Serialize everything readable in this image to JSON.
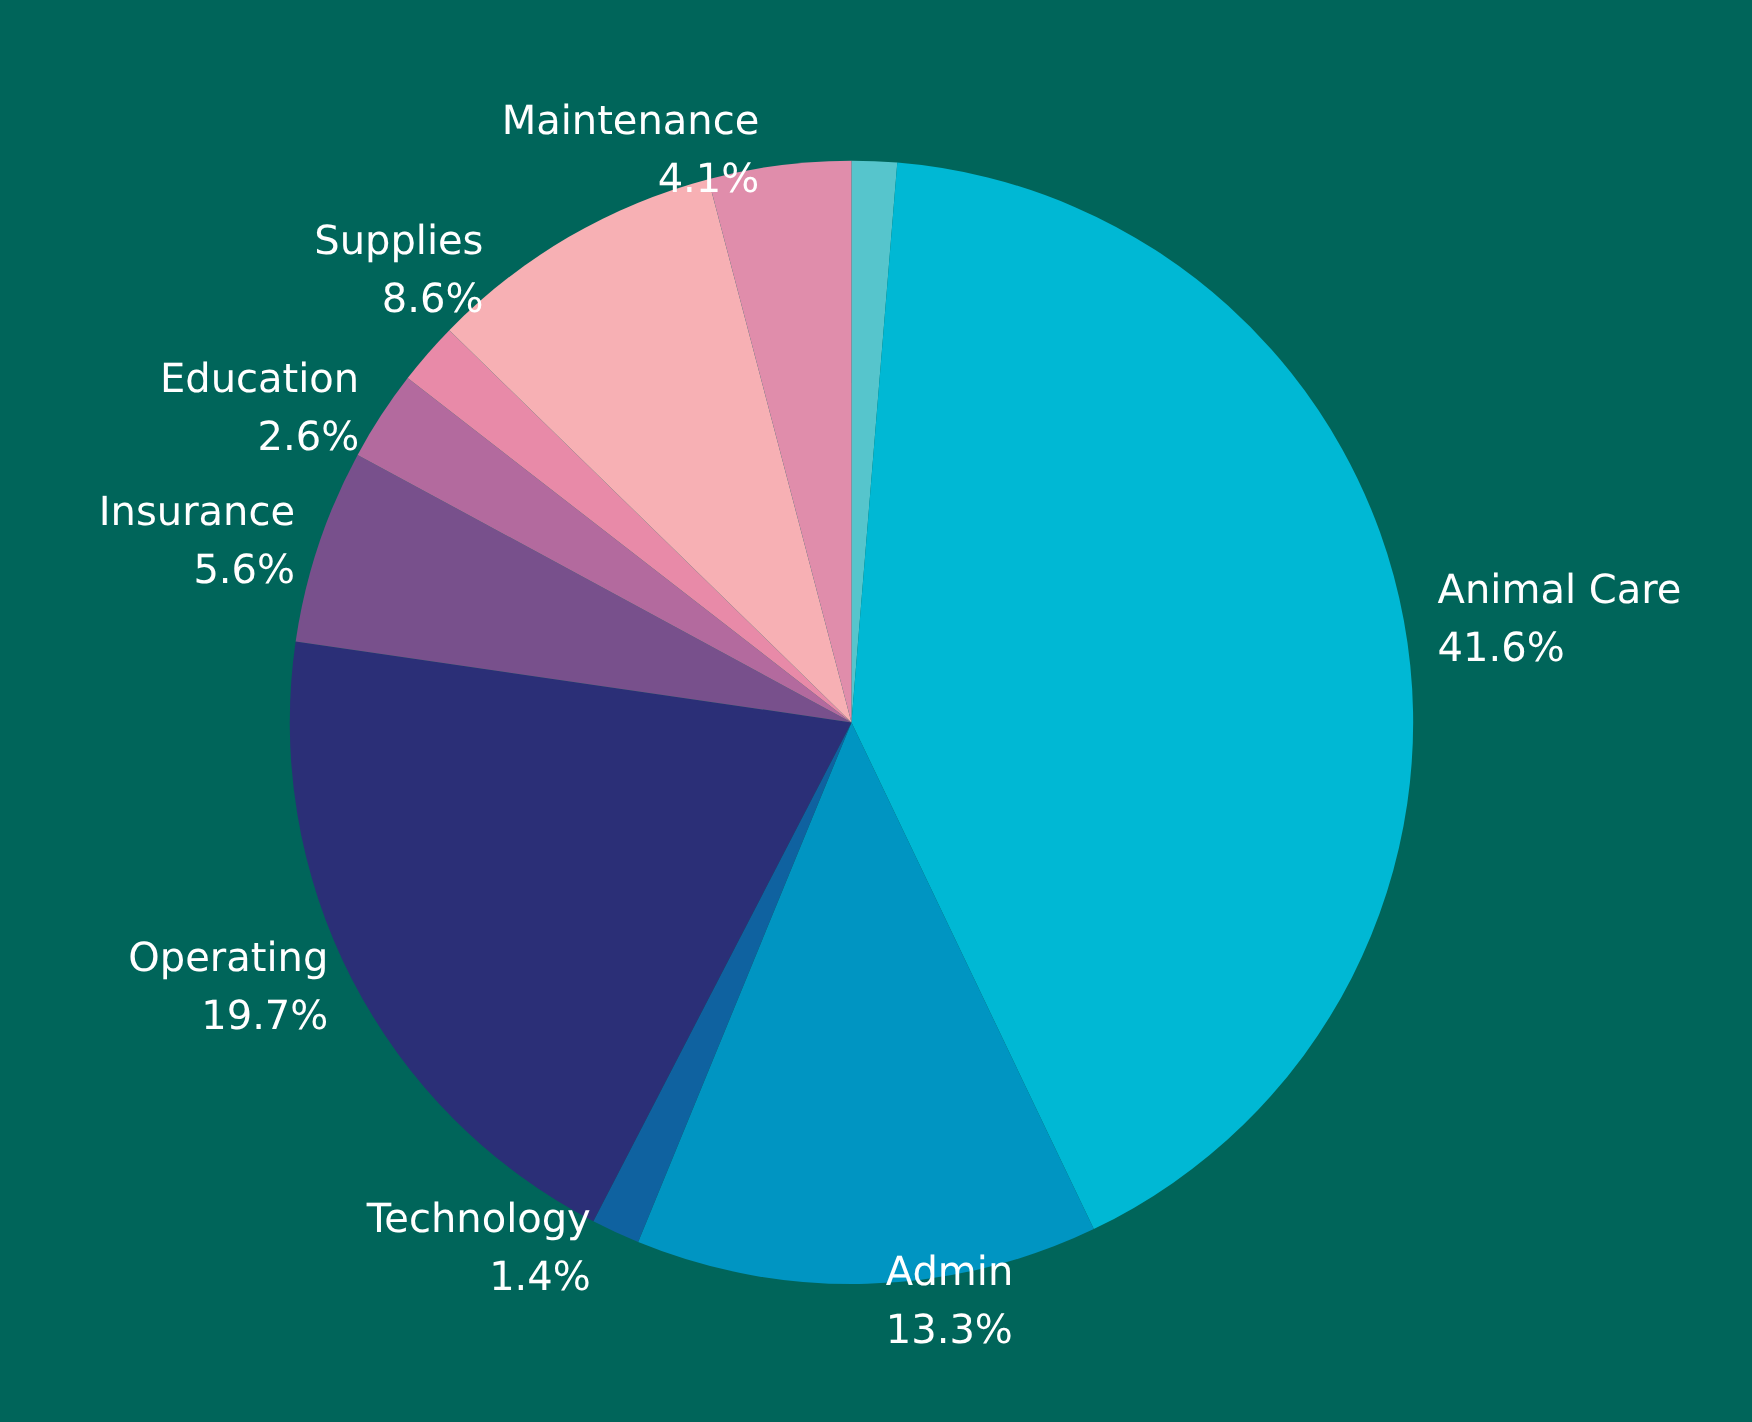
{
  "chart_data": {
    "type": "pie",
    "categories": [
      null,
      "Animal Care",
      "Admin",
      "Technology",
      "Operating",
      "Insurance",
      "Education",
      null,
      "Supplies",
      "Maintenance"
    ],
    "values": [
      1.3,
      41.6,
      13.3,
      1.4,
      19.7,
      5.6,
      2.6,
      1.8,
      8.6,
      4.1
    ],
    "value_labels": [
      null,
      "41.6%",
      "13.3%",
      "1.4%",
      "19.7%",
      "5.6%",
      "2.6%",
      null,
      "8.6%",
      "4.1%"
    ],
    "colors": [
      "#56c5cc",
      "#00b8d4",
      "#0095c2",
      "#0f62a0",
      "#2b2f77",
      "#78508c",
      "#b36a9e",
      "#e88aa8",
      "#f7b0b4",
      "#e08dab"
    ],
    "legend": false
  }
}
